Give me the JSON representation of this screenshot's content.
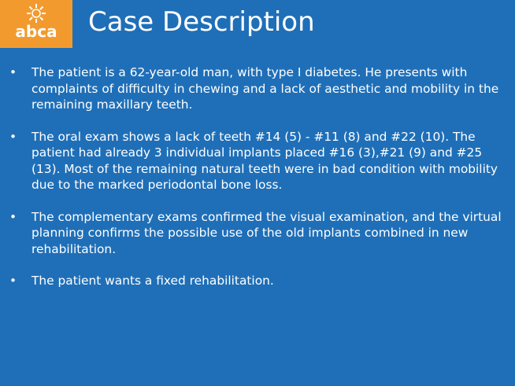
{
  "logo": {
    "text": "abca",
    "brand_color": "#f39a2e"
  },
  "slide": {
    "title": "Case Description",
    "background_color": "#1f6fb8",
    "bullets": [
      "The patient is a 62-year-old man, with type I diabetes. He presents with complaints of difficulty in chewing and a lack of aesthetic and mobility in the remaining maxillary teeth.",
      "The oral exam shows a lack of teeth #14 (5) - #11 (8) and #22 (10). The patient had already 3 individual implants placed #16 (3),#21 (9) and #25 (13). Most of the remaining natural teeth were in bad condition with mobility due to the marked periodontal bone loss.",
      "The complementary exams confirmed the visual examination, and the virtual planning confirms the possible use of the old implants combined in new rehabilitation.",
      "The patient wants a fixed rehabilitation."
    ]
  }
}
